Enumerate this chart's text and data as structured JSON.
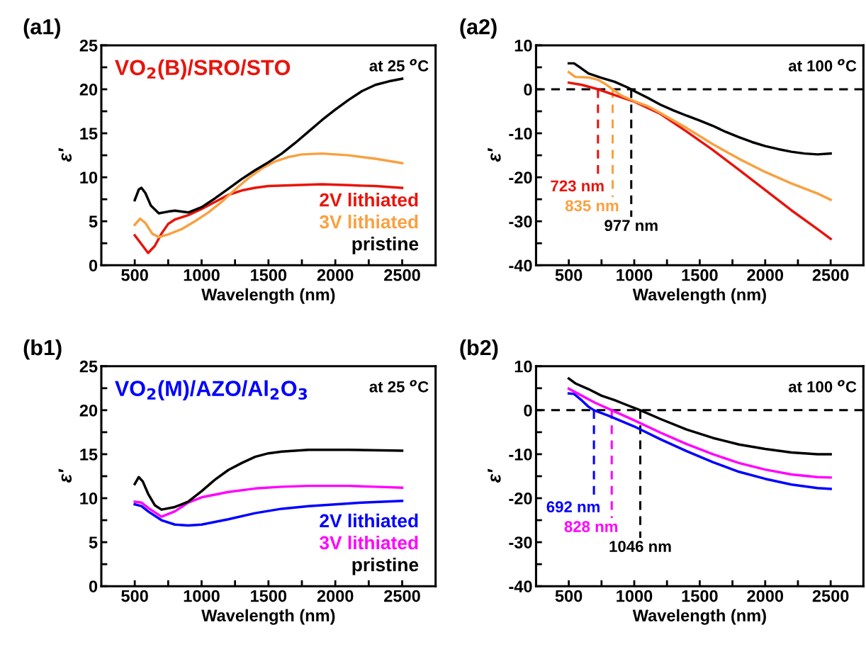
{
  "chart_data": [
    {
      "type": "line",
      "title": "(a1)",
      "xlabel": "Wavelength (nm)",
      "ylabel": "ε′",
      "xlim": [
        250,
        2750
      ],
      "ylim": [
        0,
        25
      ],
      "xticks": [
        500,
        {
          "value": 750,
          "label": null
        },
        1000,
        {
          "value": 1250,
          "label": null
        },
        1500,
        {
          "value": 1750,
          "label": null
        },
        2000,
        {
          "value": 2250,
          "label": null
        },
        2500
      ],
      "yticks": [
        0,
        {
          "value": 2.5,
          "label": null
        },
        5,
        {
          "value": 7.5,
          "label": null
        },
        10,
        {
          "value": 12.5,
          "label": null
        },
        15,
        {
          "value": 17.5,
          "label": null
        },
        20,
        {
          "value": 22.5,
          "label": null
        },
        25
      ],
      "grid": false,
      "legend": false,
      "line_style": "solid",
      "annotations": [
        "VO$_{2}$(B)/SRO/STO",
        "at 25 $^{o}$C"
      ],
      "series": [
        {
          "name": "2V lithiated",
          "color": "#e8140c",
          "x": [
            500,
            550,
            600,
            650,
            700,
            750,
            800,
            900,
            1000,
            1100,
            1200,
            1300,
            1400,
            1500,
            1700,
            1900,
            2100,
            2300,
            2500
          ],
          "values": [
            3.4,
            2.4,
            1.4,
            2.2,
            3.6,
            4.7,
            5.2,
            5.7,
            6.4,
            7.2,
            8.0,
            8.5,
            8.8,
            9.0,
            9.1,
            9.2,
            9.1,
            9.0,
            8.8
          ]
        },
        {
          "name": "3V lithiated",
          "color": "#f9a040",
          "x": [
            500,
            540,
            580,
            630,
            680,
            750,
            850,
            950,
            1050,
            1150,
            1250,
            1350,
            1450,
            1550,
            1650,
            1750,
            1900,
            2100,
            2300,
            2500
          ],
          "values": [
            4.6,
            5.3,
            4.8,
            3.6,
            3.2,
            3.5,
            4.1,
            5.0,
            6.0,
            7.2,
            8.6,
            9.9,
            11.0,
            11.8,
            12.3,
            12.6,
            12.7,
            12.5,
            12.1,
            11.6
          ]
        },
        {
          "name": "pristine",
          "color": "#000000",
          "x": [
            500,
            530,
            550,
            580,
            620,
            680,
            750,
            800,
            900,
            1000,
            1100,
            1200,
            1300,
            1400,
            1500,
            1600,
            1700,
            1800,
            1900,
            2000,
            2100,
            2200,
            2300,
            2400,
            2500
          ],
          "values": [
            7.4,
            8.6,
            8.8,
            8.2,
            6.8,
            5.9,
            6.1,
            6.2,
            6.0,
            6.6,
            7.6,
            8.7,
            9.8,
            10.8,
            11.7,
            12.7,
            13.9,
            15.2,
            16.5,
            17.7,
            18.8,
            19.8,
            20.5,
            20.9,
            21.2
          ]
        }
      ]
    },
    {
      "type": "line",
      "title": "(a2)",
      "xlabel": "Wavelength (nm)",
      "ylabel": "ε′",
      "xlim": [
        250,
        2750
      ],
      "ylim": [
        -40,
        10
      ],
      "xticks": [
        500,
        {
          "value": 750,
          "label": null
        },
        1000,
        {
          "value": 1250,
          "label": null
        },
        1500,
        {
          "value": 1750,
          "label": null
        },
        2000,
        {
          "value": 2250,
          "label": null
        },
        2500
      ],
      "yticks": [
        -40,
        {
          "value": -35,
          "label": null
        },
        -30,
        {
          "value": -25,
          "label": null
        },
        -20,
        {
          "value": -15,
          "label": null
        },
        -10,
        {
          "value": -5,
          "label": null
        },
        0,
        {
          "value": 5,
          "label": null
        },
        10
      ],
      "grid": false,
      "legend": false,
      "line_style": "solid",
      "annotations": [
        "at 100 $^{o}$C"
      ],
      "ref_lines": [
        {
          "axis": "y",
          "value": 0,
          "label": null,
          "color": "#000000",
          "line_style": "dashed"
        },
        {
          "axis": "x",
          "value": 723,
          "label": "723 nm",
          "color": "#e8140c",
          "line_style": "dashed"
        },
        {
          "axis": "x",
          "value": 835,
          "label": "835 nm",
          "color": "#f9a040",
          "line_style": "dashed"
        },
        {
          "axis": "x",
          "value": 977,
          "label": "977 nm",
          "color": "#000000",
          "line_style": "dashed"
        }
      ],
      "series": [
        {
          "color": "#e8140c",
          "x": [
            500,
            600,
            723,
            850,
            1000,
            1200,
            1400,
            1600,
            1800,
            2000,
            2200,
            2400,
            2500
          ],
          "values": [
            1.5,
            1.0,
            0,
            -1.3,
            -2.8,
            -5.6,
            -9.6,
            -13.8,
            -18.3,
            -22.9,
            -27.5,
            -31.8,
            -34.0
          ]
        },
        {
          "color": "#f9a040",
          "x": [
            500,
            550,
            650,
            720,
            780,
            835,
            900,
            1000,
            1100,
            1200,
            1400,
            1600,
            1800,
            2000,
            2200,
            2400,
            2500
          ],
          "values": [
            3.9,
            2.8,
            2.7,
            2.2,
            1.2,
            0,
            -1.4,
            -2.7,
            -3.8,
            -5.4,
            -8.8,
            -12.5,
            -15.8,
            -18.8,
            -21.4,
            -23.7,
            -25.1
          ]
        },
        {
          "color": "#000000",
          "x": [
            500,
            540,
            580,
            650,
            750,
            850,
            950,
            1000,
            1100,
            1200,
            1300,
            1400,
            1500,
            1600,
            1700,
            1800,
            1900,
            2000,
            2100,
            2200,
            2300,
            2400,
            2500
          ],
          "values": [
            5.9,
            5.9,
            5.1,
            3.6,
            2.6,
            1.7,
            0.4,
            -0.4,
            -1.9,
            -3.5,
            -4.8,
            -6.0,
            -7.1,
            -8.3,
            -9.7,
            -10.9,
            -12.0,
            -12.9,
            -13.6,
            -14.2,
            -14.6,
            -14.8,
            -14.6
          ]
        }
      ]
    },
    {
      "type": "line",
      "title": "(b1)",
      "xlabel": "Wavelength (nm)",
      "ylabel": "ε′",
      "xlim": [
        250,
        2750
      ],
      "ylim": [
        0,
        25
      ],
      "xticks": [
        500,
        {
          "value": 750,
          "label": null
        },
        1000,
        {
          "value": 1250,
          "label": null
        },
        1500,
        {
          "value": 1750,
          "label": null
        },
        2000,
        {
          "value": 2250,
          "label": null
        },
        2500
      ],
      "yticks": [
        0,
        {
          "value": 2.5,
          "label": null
        },
        5,
        {
          "value": 7.5,
          "label": null
        },
        10,
        {
          "value": 12.5,
          "label": null
        },
        15,
        {
          "value": 17.5,
          "label": null
        },
        20,
        {
          "value": 22.5,
          "label": null
        },
        25
      ],
      "grid": false,
      "legend": false,
      "line_style": "solid",
      "annotations": [
        "VO$_{2}$(M)/AZO/Al$_{2}$O$_{3}$",
        "at 25 $^{o}$C"
      ],
      "series": [
        {
          "name": "2V lithiated",
          "color": "#0000ff",
          "x": [
            500,
            550,
            600,
            700,
            800,
            900,
            1000,
            1200,
            1400,
            1600,
            1800,
            2000,
            2200,
            2500
          ],
          "values": [
            9.3,
            9.1,
            8.5,
            7.5,
            7.0,
            6.9,
            7.0,
            7.6,
            8.3,
            8.8,
            9.1,
            9.3,
            9.5,
            9.7
          ]
        },
        {
          "name": "3V lithiated",
          "color": "#ff00ff",
          "x": [
            500,
            550,
            600,
            700,
            800,
            900,
            1000,
            1200,
            1400,
            1600,
            1800,
            2100,
            2300,
            2500
          ],
          "values": [
            9.6,
            9.5,
            8.9,
            7.9,
            8.5,
            9.5,
            10.1,
            10.7,
            11.1,
            11.3,
            11.4,
            11.4,
            11.3,
            11.2
          ]
        },
        {
          "name": "pristine",
          "color": "#000000",
          "x": [
            500,
            530,
            560,
            600,
            650,
            700,
            800,
            900,
            1000,
            1100,
            1200,
            1300,
            1400,
            1500,
            1600,
            1800,
            2100,
            2500
          ],
          "values": [
            11.6,
            12.4,
            11.9,
            10.5,
            9.2,
            8.7,
            9.0,
            9.6,
            10.8,
            12.1,
            13.2,
            14.0,
            14.7,
            15.1,
            15.3,
            15.5,
            15.5,
            15.4
          ]
        }
      ]
    },
    {
      "type": "line",
      "title": "(b2)",
      "xlabel": "Wavelength (nm)",
      "ylabel": "ε′",
      "xlim": [
        250,
        2750
      ],
      "ylim": [
        -40,
        10
      ],
      "xticks": [
        500,
        {
          "value": 750,
          "label": null
        },
        1000,
        {
          "value": 1250,
          "label": null
        },
        1500,
        {
          "value": 1750,
          "label": null
        },
        2000,
        {
          "value": 2250,
          "label": null
        },
        2500
      ],
      "yticks": [
        -40,
        {
          "value": -35,
          "label": null
        },
        -30,
        {
          "value": -25,
          "label": null
        },
        -20,
        {
          "value": -15,
          "label": null
        },
        -10,
        {
          "value": -5,
          "label": null
        },
        0,
        {
          "value": 5,
          "label": null
        },
        10
      ],
      "grid": false,
      "legend": false,
      "line_style": "solid",
      "annotations": [
        "at 100 $^{o}$C"
      ],
      "ref_lines": [
        {
          "axis": "y",
          "value": 0,
          "label": null,
          "color": "#000000",
          "line_style": "dashed"
        },
        {
          "axis": "x",
          "value": 692,
          "label": "692 nm",
          "color": "#0000ff",
          "line_style": "dashed"
        },
        {
          "axis": "x",
          "value": 828,
          "label": "828 nm",
          "color": "#ff00ff",
          "line_style": "dashed"
        },
        {
          "axis": "x",
          "value": 1046,
          "label": "1046 nm",
          "color": "#000000",
          "line_style": "dashed"
        }
      ],
      "series": [
        {
          "color": "#0000ff",
          "x": [
            500,
            540,
            600,
            650,
            692,
            800,
            1000,
            1200,
            1400,
            1600,
            1800,
            2000,
            2200,
            2400,
            2500
          ],
          "values": [
            3.8,
            3.7,
            2.2,
            0.8,
            0,
            -1.2,
            -3.7,
            -6.6,
            -9.3,
            -11.8,
            -14.0,
            -15.6,
            -16.9,
            -17.7,
            -17.9
          ]
        },
        {
          "color": "#ff00ff",
          "x": [
            500,
            600,
            700,
            828,
            1000,
            1200,
            1400,
            1600,
            1800,
            2000,
            2200,
            2400,
            2500
          ],
          "values": [
            4.9,
            3.3,
            1.7,
            0,
            -2.3,
            -5.1,
            -7.7,
            -10.0,
            -12.0,
            -13.5,
            -14.6,
            -15.2,
            -15.3
          ]
        },
        {
          "color": "#000000",
          "x": [
            500,
            550,
            650,
            750,
            850,
            950,
            1046,
            1200,
            1400,
            1600,
            1800,
            2000,
            2200,
            2400,
            2500
          ],
          "values": [
            7.2,
            6.1,
            4.8,
            3.3,
            2.3,
            1.1,
            0,
            -2.0,
            -4.4,
            -6.3,
            -7.8,
            -8.8,
            -9.6,
            -10.0,
            -10.0
          ]
        }
      ]
    }
  ]
}
